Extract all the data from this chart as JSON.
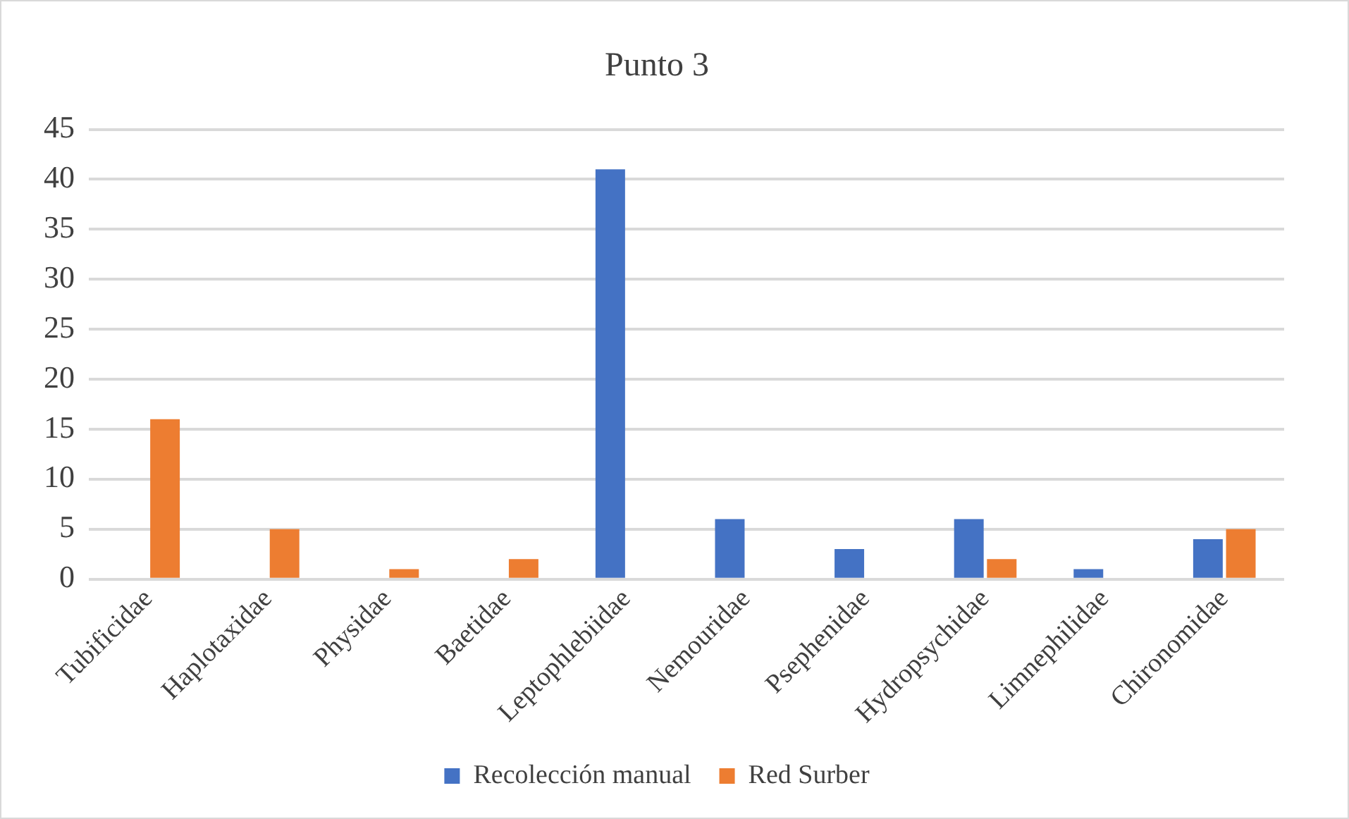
{
  "chart_data": {
    "type": "bar",
    "title": "Punto 3",
    "categories": [
      "Tubificidae",
      "Haplotaxidae",
      "Physidae",
      "Baetidae",
      "Leptophlebiidae",
      "Nemouridae",
      "Psephenidae",
      "Hydropsychidae",
      "Limnephilidae",
      "Chironomidae"
    ],
    "series": [
      {
        "name": "Recolección manual",
        "color": "#4472c4",
        "values": [
          0,
          0,
          0,
          0,
          41,
          6,
          3,
          6,
          1,
          4
        ]
      },
      {
        "name": "Red Surber",
        "color": "#ed7d31",
        "values": [
          16,
          5,
          1,
          2,
          0,
          0,
          0,
          2,
          0,
          5
        ]
      }
    ],
    "ylim": [
      0,
      45
    ],
    "yticks": [
      0,
      5,
      10,
      15,
      20,
      25,
      30,
      35,
      40,
      45
    ],
    "grid": "y",
    "legend": "bottom"
  }
}
